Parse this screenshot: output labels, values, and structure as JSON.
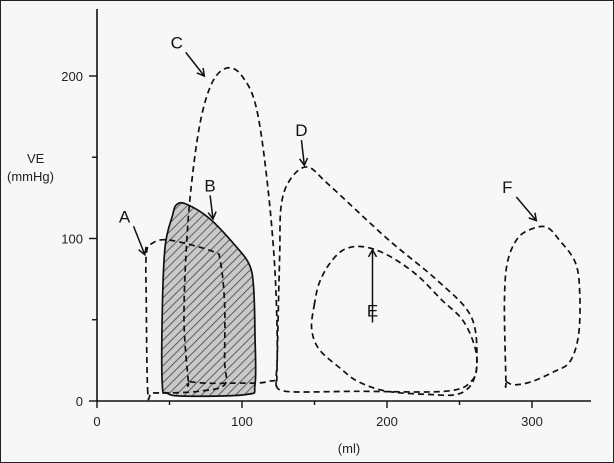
{
  "chart_data": {
    "type": "line",
    "title": "",
    "xlabel": "(ml)",
    "ylabel": "VE\n(mmHg)",
    "xlim": [
      0,
      340
    ],
    "ylim": [
      0,
      240
    ],
    "x_ticks": [
      0,
      100,
      200,
      300
    ],
    "y_ticks": [
      0,
      100,
      200
    ],
    "grid": false,
    "series": [
      {
        "name": "A",
        "shaded": false,
        "points": [
          [
            35,
            5
          ],
          [
            34,
            60
          ],
          [
            34,
            90
          ],
          [
            38,
            97
          ],
          [
            50,
            99
          ],
          [
            80,
            92
          ],
          [
            85,
            86
          ],
          [
            88,
            60
          ],
          [
            88,
            25
          ],
          [
            88,
            10
          ],
          [
            70,
            6
          ],
          [
            50,
            5
          ],
          [
            38,
            5
          ]
        ]
      },
      {
        "name": "B",
        "shaded": true,
        "points": [
          [
            45,
            10
          ],
          [
            45,
            55
          ],
          [
            47,
            95
          ],
          [
            52,
            114
          ],
          [
            55,
            121
          ],
          [
            62,
            121
          ],
          [
            78,
            112
          ],
          [
            95,
            96
          ],
          [
            105,
            84
          ],
          [
            108,
            70
          ],
          [
            109,
            40
          ],
          [
            109,
            10
          ],
          [
            103,
            4
          ],
          [
            60,
            3
          ],
          [
            48,
            5
          ]
        ]
      },
      {
        "name": "C",
        "shaded": false,
        "points": [
          [
            63,
            12
          ],
          [
            60,
            50
          ],
          [
            62,
            100
          ],
          [
            66,
            140
          ],
          [
            72,
            175
          ],
          [
            80,
            197
          ],
          [
            90,
            205
          ],
          [
            100,
            200
          ],
          [
            110,
            180
          ],
          [
            118,
            130
          ],
          [
            123,
            75
          ],
          [
            124,
            20
          ],
          [
            118,
            12
          ],
          [
            95,
            11
          ],
          [
            75,
            11
          ],
          [
            63,
            12
          ]
        ]
      },
      {
        "name": "D",
        "shaded": false,
        "points": [
          [
            124,
            12
          ],
          [
            125,
            55
          ],
          [
            126,
            90
          ],
          [
            127,
            120
          ],
          [
            133,
            136
          ],
          [
            145,
            144
          ],
          [
            160,
            133
          ],
          [
            200,
            100
          ],
          [
            235,
            74
          ],
          [
            258,
            52
          ],
          [
            262,
            25
          ],
          [
            258,
            12
          ],
          [
            240,
            6
          ],
          [
            180,
            6
          ],
          [
            130,
            6
          ],
          [
            124,
            12
          ]
        ]
      },
      {
        "name": "E",
        "shaded": false,
        "points": [
          [
            150,
            60
          ],
          [
            148,
            45
          ],
          [
            153,
            32
          ],
          [
            168,
            20
          ],
          [
            180,
            12
          ],
          [
            200,
            6
          ],
          [
            230,
            4
          ],
          [
            248,
            4
          ],
          [
            258,
            10
          ],
          [
            262,
            22
          ],
          [
            260,
            35
          ],
          [
            252,
            50
          ],
          [
            238,
            62
          ],
          [
            220,
            78
          ],
          [
            200,
            90
          ],
          [
            183,
            95
          ],
          [
            170,
            93
          ],
          [
            160,
            84
          ],
          [
            153,
            72
          ],
          [
            150,
            60
          ]
        ]
      },
      {
        "name": "F",
        "shaded": false,
        "points": [
          [
            282,
            12
          ],
          [
            281,
            60
          ],
          [
            283,
            85
          ],
          [
            290,
            100
          ],
          [
            300,
            106
          ],
          [
            310,
            107
          ],
          [
            318,
            100
          ],
          [
            330,
            85
          ],
          [
            333,
            65
          ],
          [
            332,
            40
          ],
          [
            326,
            24
          ],
          [
            315,
            18
          ],
          [
            300,
            12
          ],
          [
            288,
            10
          ],
          [
            282,
            12
          ]
        ]
      }
    ],
    "annotations": [
      {
        "text": "A",
        "lx": 19,
        "ly": 110,
        "ax": 33,
        "ay": 90
      },
      {
        "text": "B",
        "lx": 78,
        "ly": 129,
        "ax": 80,
        "ay": 112
      },
      {
        "text": "C",
        "lx": 55,
        "ly": 217,
        "ax": 74,
        "ay": 200
      },
      {
        "text": "D",
        "lx": 141,
        "ly": 163,
        "ax": 143,
        "ay": 145
      },
      {
        "text": "E",
        "lx": 190,
        "ly": 52,
        "ax": 190,
        "ay": 93
      },
      {
        "text": "F",
        "lx": 283,
        "ly": 128,
        "ax": 303,
        "ay": 111
      }
    ]
  }
}
